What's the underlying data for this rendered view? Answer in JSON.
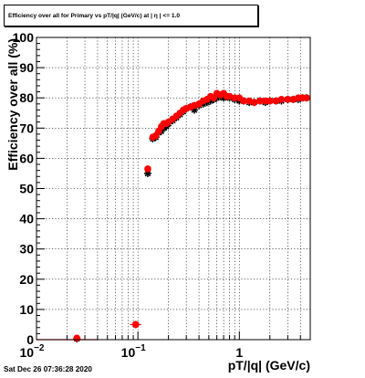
{
  "title": "Efficiency over all for Primary vs pT/|q| (GeV/c) at | η | <= 1.0",
  "timestamp": "Sat Dec 26 07:36:28 2020",
  "chart_data": {
    "type": "scatter",
    "title": "Efficiency over all for Primary vs pT/|q| (GeV/c) at | η | <= 1.0",
    "xlabel": "pT/|q| (GeV/c)",
    "ylabel": "Efficiency over all (%)",
    "x_scale": "log",
    "xlim": [
      0.01,
      5.0
    ],
    "ylim": [
      0,
      100
    ],
    "x_ticks": [
      {
        "label": "10",
        "exp": "−2",
        "value": 0.01
      },
      {
        "label": "10",
        "exp": "−1",
        "value": 0.1
      },
      {
        "label": "1",
        "exp": "",
        "value": 1
      }
    ],
    "y_ticks": [
      "0",
      "10",
      "20",
      "30",
      "40",
      "50",
      "60",
      "70",
      "80",
      "90",
      "100"
    ],
    "grid": true,
    "series": [
      {
        "color": "#000000",
        "marker": "star",
        "points": [
          [
            0.025,
            0.3
          ],
          [
            0.095,
            5.0
          ],
          [
            0.125,
            55.0
          ],
          [
            0.14,
            66.5
          ],
          [
            0.15,
            67.0
          ],
          [
            0.16,
            68.5
          ],
          [
            0.17,
            69.0
          ],
          [
            0.18,
            70.0
          ],
          [
            0.19,
            70.5
          ],
          [
            0.2,
            71.5
          ],
          [
            0.22,
            72.5
          ],
          [
            0.24,
            73.5
          ],
          [
            0.26,
            74.5
          ],
          [
            0.28,
            75.5
          ],
          [
            0.3,
            76.5
          ],
          [
            0.33,
            77.0
          ],
          [
            0.36,
            76.0
          ],
          [
            0.4,
            77.5
          ],
          [
            0.44,
            78.0
          ],
          [
            0.48,
            78.5
          ],
          [
            0.52,
            79.0
          ],
          [
            0.56,
            79.5
          ],
          [
            0.6,
            80.0
          ],
          [
            0.65,
            80.5
          ],
          [
            0.7,
            80.0
          ],
          [
            0.75,
            80.5
          ],
          [
            0.8,
            80.0
          ],
          [
            0.9,
            79.5
          ],
          [
            1.0,
            79.0
          ],
          [
            1.1,
            79.0
          ],
          [
            1.25,
            78.5
          ],
          [
            1.4,
            78.5
          ],
          [
            1.6,
            79.0
          ],
          [
            1.8,
            78.5
          ],
          [
            2.0,
            79.0
          ],
          [
            2.3,
            79.0
          ],
          [
            2.6,
            79.0
          ],
          [
            3.0,
            79.5
          ],
          [
            3.4,
            79.5
          ],
          [
            3.8,
            79.5
          ],
          [
            4.2,
            80.0
          ],
          [
            4.6,
            80.0
          ]
        ]
      },
      {
        "color": "#ff0000",
        "marker": "circle",
        "points": [
          [
            0.025,
            0.5
          ],
          [
            0.095,
            5.0
          ],
          [
            0.125,
            56.5
          ],
          [
            0.14,
            67.0
          ],
          [
            0.15,
            67.5
          ],
          [
            0.16,
            69.0
          ],
          [
            0.17,
            70.5
          ],
          [
            0.18,
            71.5
          ],
          [
            0.19,
            71.5
          ],
          [
            0.2,
            72.0
          ],
          [
            0.22,
            73.0
          ],
          [
            0.24,
            74.0
          ],
          [
            0.26,
            75.0
          ],
          [
            0.28,
            76.0
          ],
          [
            0.3,
            76.5
          ],
          [
            0.33,
            77.0
          ],
          [
            0.36,
            77.5
          ],
          [
            0.4,
            78.0
          ],
          [
            0.44,
            79.0
          ],
          [
            0.48,
            79.5
          ],
          [
            0.52,
            80.5
          ],
          [
            0.56,
            80.0
          ],
          [
            0.6,
            81.5
          ],
          [
            0.65,
            81.0
          ],
          [
            0.7,
            81.5
          ],
          [
            0.75,
            80.5
          ],
          [
            0.8,
            80.5
          ],
          [
            0.9,
            80.0
          ],
          [
            1.0,
            80.0
          ],
          [
            1.1,
            79.0
          ],
          [
            1.25,
            79.0
          ],
          [
            1.4,
            78.5
          ],
          [
            1.6,
            79.0
          ],
          [
            1.8,
            79.0
          ],
          [
            2.0,
            79.0
          ],
          [
            2.3,
            79.0
          ],
          [
            2.6,
            79.5
          ],
          [
            3.0,
            79.5
          ],
          [
            3.4,
            79.5
          ],
          [
            3.8,
            80.0
          ],
          [
            4.2,
            80.0
          ],
          [
            4.6,
            80.0
          ]
        ]
      }
    ],
    "low_x_segment": {
      "x": [
        0.01,
        0.04
      ],
      "y": 0
    }
  }
}
